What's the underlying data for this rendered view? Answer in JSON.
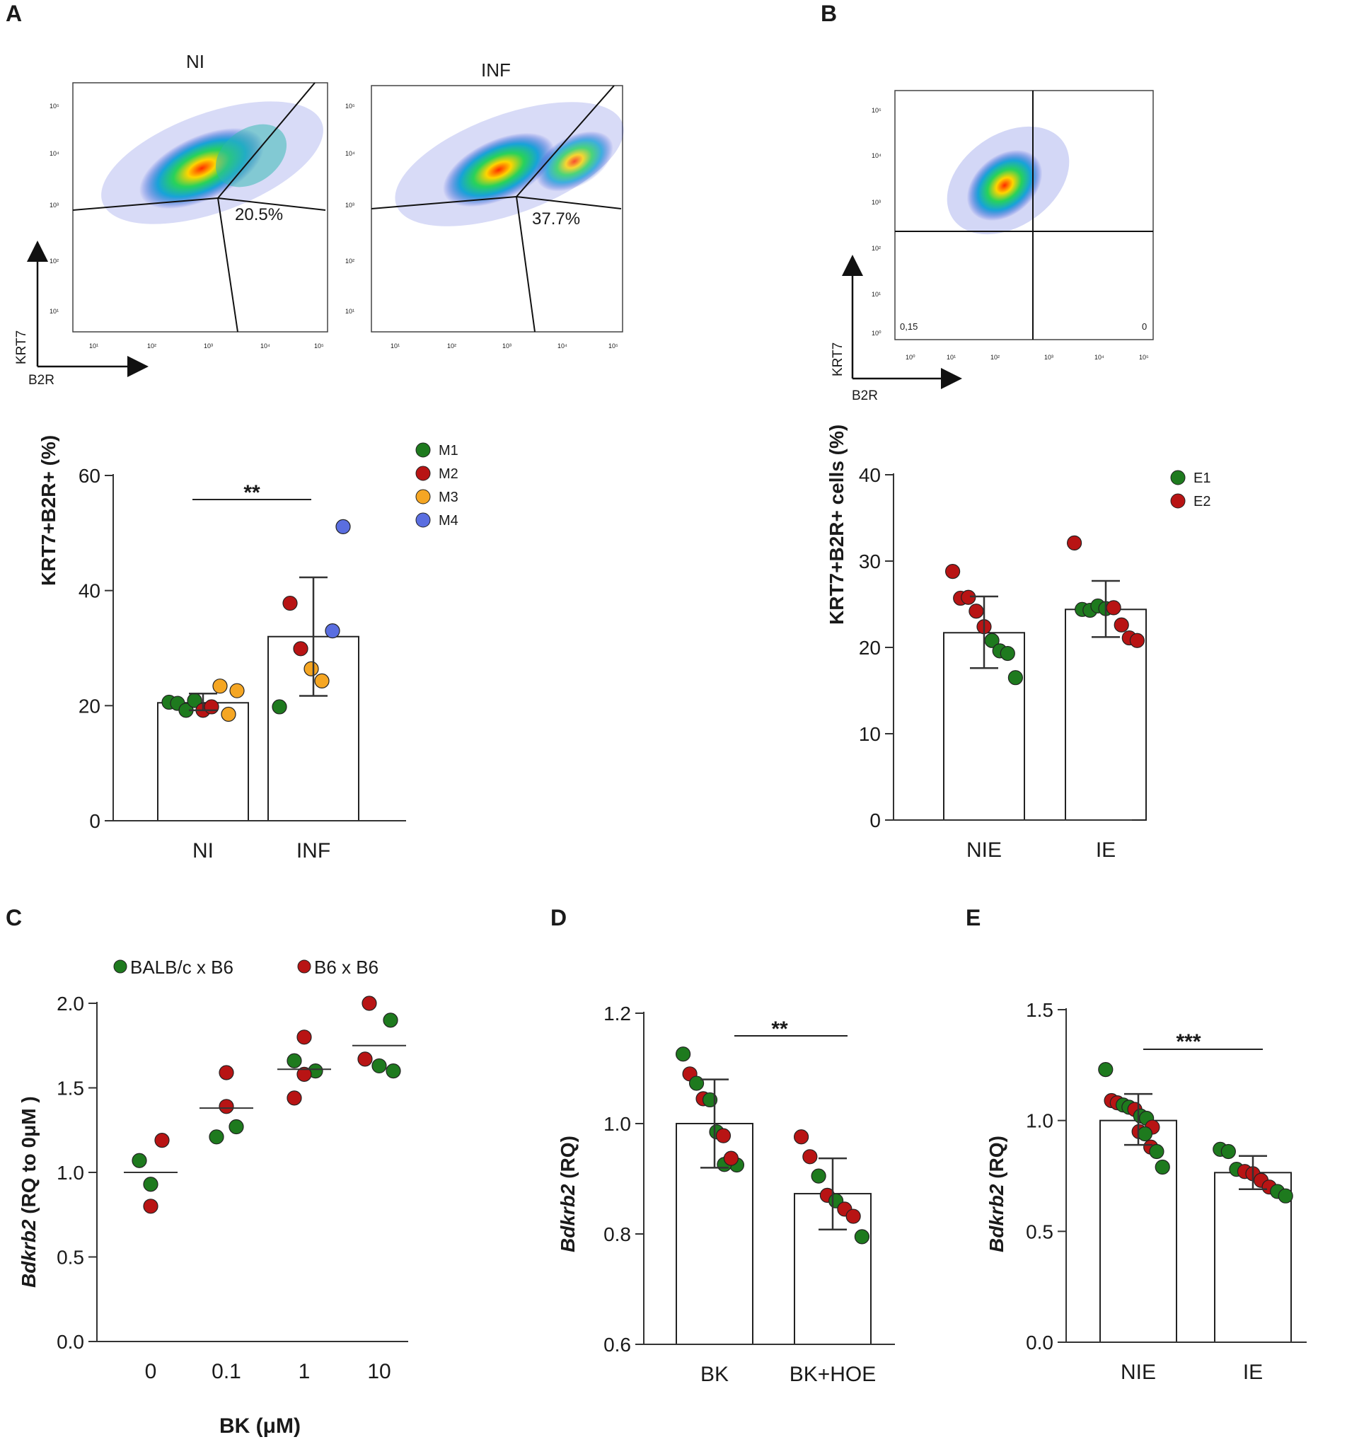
{
  "panel_letters": [
    "A",
    "B",
    "C",
    "D",
    "E"
  ],
  "chart_data": [
    {
      "id": "A-flow",
      "type": "scatter",
      "kind": "flow-cytometry",
      "title_plots": [
        "NI",
        "INF"
      ],
      "gate_percentages": [
        "20.5%",
        "37.7%"
      ],
      "xlabel": "B2R",
      "ylabel": "KRT7",
      "x_ticks": [
        "10¹",
        "10²",
        "10³",
        "10⁴",
        "10⁵"
      ],
      "y_ticks": [
        "10⁵",
        "10⁴",
        "10³",
        "10²",
        "10¹"
      ]
    },
    {
      "id": "B-flow",
      "type": "scatter",
      "kind": "flow-cytometry",
      "quadrant_values": [
        "0,15",
        "0"
      ],
      "xlabel": "B2R",
      "ylabel": "KRT7",
      "x_ticks": [
        "10⁰",
        "10¹",
        "10²",
        "10³",
        "10⁴",
        "10⁵"
      ],
      "y_ticks": [
        "10⁵",
        "10⁴",
        "10³",
        "10²",
        "10¹",
        "10⁰"
      ]
    },
    {
      "id": "A",
      "type": "bar",
      "categories": [
        "NI",
        "INF"
      ],
      "ylabel": "KRT7+B2R+ (%)",
      "ylim": [
        0,
        60
      ],
      "yticks": [
        "0",
        "20",
        "40",
        "60"
      ],
      "means": [
        20.5,
        32
      ],
      "errors": [
        [
          19.2,
          22.1
        ],
        [
          21.7,
          42.3
        ]
      ],
      "significance": "**",
      "legend": [
        {
          "label": "M1",
          "color": "#1e7a1e"
        },
        {
          "label": "M2",
          "color": "#b81414"
        },
        {
          "label": "M3",
          "color": "#f5a623"
        },
        {
          "label": "M4",
          "color": "#5a6ee0"
        }
      ],
      "points": [
        [
          {
            "y": 20.6,
            "g": 0
          },
          {
            "y": 20.4,
            "g": 0
          },
          {
            "y": 19.2,
            "g": 0
          },
          {
            "y": 20.9,
            "g": 0
          },
          {
            "y": 19.2,
            "g": 1
          },
          {
            "y": 19.8,
            "g": 1
          },
          {
            "y": 23.4,
            "g": 2
          },
          {
            "y": 18.5,
            "g": 2
          },
          {
            "y": 22.6,
            "g": 2
          }
        ],
        [
          {
            "y": 19.8,
            "g": 0
          },
          {
            "y": 37.8,
            "g": 1
          },
          {
            "y": 29.9,
            "g": 1
          },
          {
            "y": 26.4,
            "g": 2
          },
          {
            "y": 24.3,
            "g": 2
          },
          {
            "y": 33.0,
            "g": 3
          },
          {
            "y": 51.1,
            "g": 3
          }
        ]
      ]
    },
    {
      "id": "B",
      "type": "bar",
      "categories": [
        "NIE",
        "IE"
      ],
      "ylabel": "KRT7+B2R+ cells (%)",
      "ylim": [
        0,
        40
      ],
      "yticks": [
        "0",
        "10",
        "20",
        "30",
        "40"
      ],
      "means": [
        21.7,
        24.4
      ],
      "errors": [
        [
          17.6,
          25.9
        ],
        [
          21.2,
          27.7
        ]
      ],
      "legend": [
        {
          "label": "E1",
          "color": "#1e7a1e"
        },
        {
          "label": "E2",
          "color": "#b81414"
        }
      ],
      "points": [
        [
          {
            "y": 28.8,
            "g": 1
          },
          {
            "y": 25.7,
            "g": 1
          },
          {
            "y": 25.8,
            "g": 1
          },
          {
            "y": 24.2,
            "g": 1
          },
          {
            "y": 22.4,
            "g": 1
          },
          {
            "y": 20.8,
            "g": 0
          },
          {
            "y": 19.6,
            "g": 0
          },
          {
            "y": 19.3,
            "g": 0
          },
          {
            "y": 16.5,
            "g": 0
          }
        ],
        [
          {
            "y": 32.1,
            "g": 1
          },
          {
            "y": 24.4,
            "g": 0
          },
          {
            "y": 24.3,
            "g": 0
          },
          {
            "y": 24.8,
            "g": 0
          },
          {
            "y": 24.5,
            "g": 0
          },
          {
            "y": 24.6,
            "g": 1
          },
          {
            "y": 22.6,
            "g": 1
          },
          {
            "y": 21.1,
            "g": 1
          },
          {
            "y": 20.8,
            "g": 1
          }
        ]
      ]
    },
    {
      "id": "C",
      "type": "scatter",
      "categories": [
        "0",
        "0.1",
        "1",
        "10"
      ],
      "xlabel": "BK (μM)",
      "ylabel_italic": "Bdkrb2",
      "ylabel_rest": " (RQ to 0μM )",
      "ylim": [
        0,
        2.0
      ],
      "yticks": [
        "0.0",
        "0.5",
        "1.0",
        "1.5",
        "2.0"
      ],
      "means": [
        1.0,
        1.38,
        1.61,
        1.75
      ],
      "legend": [
        {
          "label": "BALB/c  x B6",
          "color": "#1e7a1e"
        },
        {
          "label": "B6 x B6",
          "color": "#b81414"
        }
      ],
      "points": [
        [
          {
            "y": 1.07,
            "g": 0,
            "dx": -16
          },
          {
            "y": 0.93,
            "g": 0,
            "dx": 0
          },
          {
            "y": 1.19,
            "g": 1,
            "dx": 16
          },
          {
            "y": 0.8,
            "g": 1,
            "dx": 0
          }
        ],
        [
          {
            "y": 1.59,
            "g": 1,
            "dx": 0
          },
          {
            "y": 1.39,
            "g": 1,
            "dx": 0
          },
          {
            "y": 1.27,
            "g": 0,
            "dx": 14
          },
          {
            "y": 1.21,
            "g": 0,
            "dx": -14
          }
        ],
        [
          {
            "y": 1.8,
            "g": 1,
            "dx": 0
          },
          {
            "y": 1.66,
            "g": 0,
            "dx": -14
          },
          {
            "y": 1.6,
            "g": 0,
            "dx": 16
          },
          {
            "y": 1.58,
            "g": 1,
            "dx": 0
          },
          {
            "y": 1.44,
            "g": 1,
            "dx": -14
          }
        ],
        [
          {
            "y": 2.0,
            "g": 1,
            "dx": -14
          },
          {
            "y": 1.9,
            "g": 0,
            "dx": 16
          },
          {
            "y": 1.67,
            "g": 1,
            "dx": -20
          },
          {
            "y": 1.63,
            "g": 0,
            "dx": 0
          },
          {
            "y": 1.6,
            "g": 0,
            "dx": 20
          }
        ]
      ]
    },
    {
      "id": "D",
      "type": "bar",
      "categories": [
        "BK",
        "BK+HOE"
      ],
      "ylabel_italic": "Bdkrb2",
      "ylabel_rest": " (RQ)",
      "ylim": [
        0.6,
        1.2
      ],
      "yticks": [
        "0.6",
        "0.8",
        "1.0",
        "1.2"
      ],
      "means": [
        1.0,
        0.873
      ],
      "errors": [
        [
          0.92,
          1.08
        ],
        [
          0.808,
          0.937
        ]
      ],
      "significance": "**",
      "points": [
        [
          {
            "y": 1.126,
            "g": 0
          },
          {
            "y": 1.09,
            "g": 1
          },
          {
            "y": 1.073,
            "g": 0
          },
          {
            "y": 1.045,
            "g": 1
          },
          {
            "y": 1.043,
            "g": 0
          },
          {
            "y": 0.985,
            "g": 0
          },
          {
            "y": 0.978,
            "g": 1
          },
          {
            "y": 0.933,
            "g": 1
          },
          {
            "y": 0.925,
            "g": 0
          },
          {
            "y": 0.926,
            "g": 0
          },
          {
            "y": 0.937,
            "g": 1
          }
        ],
        [
          {
            "y": 0.976,
            "g": 1
          },
          {
            "y": 0.94,
            "g": 1
          },
          {
            "y": 0.905,
            "g": 0
          },
          {
            "y": 0.87,
            "g": 1
          },
          {
            "y": 0.86,
            "g": 0
          },
          {
            "y": 0.845,
            "g": 1
          },
          {
            "y": 0.832,
            "g": 1
          },
          {
            "y": 0.795,
            "g": 0
          }
        ]
      ]
    },
    {
      "id": "E",
      "type": "bar",
      "categories": [
        "NIE",
        "IE"
      ],
      "ylabel_italic": "Bdkrb2",
      "ylabel_rest": " (RQ)",
      "ylim": [
        0,
        1.5
      ],
      "yticks": [
        "0.0",
        "0.5",
        "1.0",
        "1.5"
      ],
      "means": [
        1.0,
        0.765
      ],
      "errors": [
        [
          0.89,
          1.12
        ],
        [
          0.69,
          0.84
        ]
      ],
      "significance": "***",
      "points": [
        [
          {
            "y": 1.23,
            "g": 0
          },
          {
            "y": 1.09,
            "g": 1
          },
          {
            "y": 1.08,
            "g": 1
          },
          {
            "y": 1.07,
            "g": 0
          },
          {
            "y": 1.06,
            "g": 0
          },
          {
            "y": 1.05,
            "g": 1
          },
          {
            "y": 1.02,
            "g": 0
          },
          {
            "y": 1.01,
            "g": 0
          },
          {
            "y": 0.97,
            "g": 1
          },
          {
            "y": 0.95,
            "g": 1
          },
          {
            "y": 0.94,
            "g": 0
          },
          {
            "y": 0.88,
            "g": 1
          },
          {
            "y": 0.86,
            "g": 0
          },
          {
            "y": 0.79,
            "g": 0
          }
        ],
        [
          {
            "y": 0.87,
            "g": 0
          },
          {
            "y": 0.86,
            "g": 0
          },
          {
            "y": 0.78,
            "g": 0
          },
          {
            "y": 0.77,
            "g": 1
          },
          {
            "y": 0.76,
            "g": 1
          },
          {
            "y": 0.73,
            "g": 1
          },
          {
            "y": 0.7,
            "g": 1
          },
          {
            "y": 0.68,
            "g": 0
          },
          {
            "y": 0.66,
            "g": 0
          }
        ]
      ]
    }
  ]
}
